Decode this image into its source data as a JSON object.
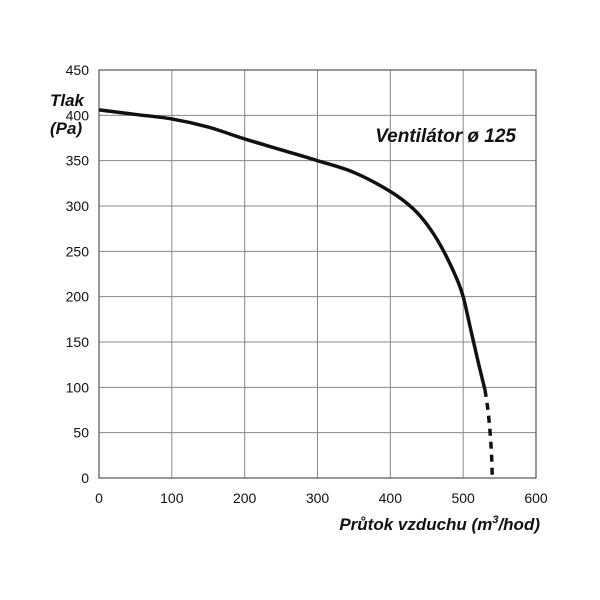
{
  "chart_data": {
    "type": "line",
    "title": "Ventilátor ø 125",
    "xlabel_main": "Průtok vzduchu (m",
    "xlabel_sup": "3",
    "xlabel_end": "/hod)",
    "ylabel_line1": "Tlak",
    "ylabel_line2": "(Pa)",
    "xlim": [
      0,
      600
    ],
    "ylim": [
      0,
      450
    ],
    "x_ticks": [
      0,
      100,
      200,
      300,
      400,
      500,
      600
    ],
    "y_ticks": [
      0,
      50,
      100,
      150,
      200,
      250,
      300,
      350,
      400,
      450
    ],
    "grid": true,
    "colors": {
      "curve": "#111111",
      "grid": "#888888",
      "frame": "#555555"
    },
    "series": [
      {
        "style": "solid",
        "x": [
          0,
          50,
          100,
          150,
          200,
          250,
          300,
          350,
          400,
          430,
          450,
          470,
          490,
          500,
          510,
          520,
          530
        ],
        "y": [
          406,
          401,
          396,
          387,
          374,
          362,
          350,
          337,
          316,
          298,
          280,
          255,
          222,
          200,
          165,
          130,
          97
        ]
      },
      {
        "style": "dashed",
        "x": [
          530,
          534,
          537,
          539,
          540
        ],
        "y": [
          97,
          75,
          50,
          25,
          0
        ]
      }
    ]
  }
}
